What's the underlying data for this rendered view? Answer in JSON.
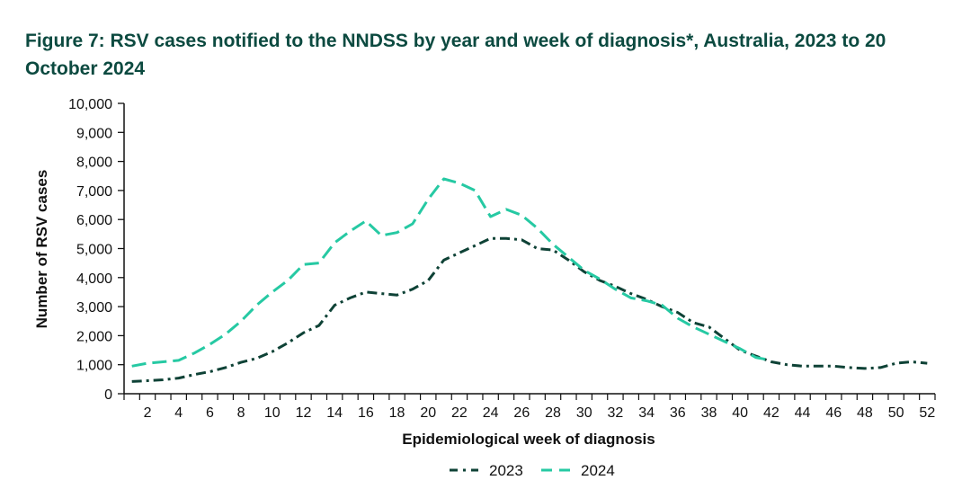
{
  "title": "Figure 7: RSV cases notified to the NNDSS by year and week of diagnosis*, Australia, 2023 to 20 October 2024",
  "chart_data": {
    "type": "line",
    "title": "Figure 7: RSV cases notified to the NNDSS by year and week of diagnosis*, Australia, 2023 to 20 October 2024",
    "xlabel": "Epidemiological week of diagnosis",
    "ylabel": "Number of RSV cases",
    "xlim": [
      1,
      52
    ],
    "ylim": [
      0,
      10000
    ],
    "x_ticks": [
      2,
      4,
      6,
      8,
      10,
      12,
      14,
      16,
      18,
      20,
      22,
      24,
      26,
      28,
      30,
      32,
      34,
      36,
      38,
      40,
      42,
      44,
      46,
      48,
      50,
      52
    ],
    "x_tick_labels": [
      "2",
      "4",
      "6",
      "8",
      "10",
      "12",
      "14",
      "16",
      "18",
      "20",
      "22",
      "24",
      "26",
      "28",
      "30",
      "32",
      "34",
      "36",
      "38",
      "40",
      "42",
      "44",
      "46",
      "48",
      "50",
      "52"
    ],
    "y_ticks": [
      0,
      1000,
      2000,
      3000,
      4000,
      5000,
      6000,
      7000,
      8000,
      9000,
      10000
    ],
    "y_tick_labels": [
      "0",
      "1,000",
      "2,000",
      "3,000",
      "4,000",
      "5,000",
      "6,000",
      "7,000",
      "8,000",
      "9,000",
      "10,000"
    ],
    "grid": false,
    "legend_position": "bottom-center",
    "series": [
      {
        "name": "2023",
        "color": "#0e4236",
        "dash": "dash-dot",
        "x": [
          1,
          2,
          3,
          4,
          5,
          6,
          7,
          8,
          9,
          10,
          11,
          12,
          13,
          14,
          15,
          16,
          17,
          18,
          19,
          20,
          21,
          22,
          23,
          24,
          25,
          26,
          27,
          28,
          29,
          30,
          31,
          32,
          33,
          34,
          35,
          36,
          37,
          38,
          39,
          40,
          41,
          42,
          43,
          44,
          45,
          46,
          47,
          48,
          49,
          50,
          51,
          52
        ],
        "values": [
          420,
          450,
          480,
          540,
          660,
          760,
          900,
          1080,
          1220,
          1450,
          1750,
          2100,
          2350,
          3050,
          3300,
          3500,
          3450,
          3400,
          3600,
          3900,
          4600,
          4850,
          5100,
          5350,
          5350,
          5300,
          5000,
          4950,
          4600,
          4200,
          3900,
          3700,
          3450,
          3250,
          3000,
          2800,
          2450,
          2300,
          1900,
          1500,
          1300,
          1100,
          1000,
          950,
          950,
          950,
          900,
          870,
          900,
          1050,
          1100,
          1050
        ]
      },
      {
        "name": "2024",
        "color": "#26c9a3",
        "dash": "dashed",
        "x": [
          1,
          2,
          3,
          4,
          5,
          6,
          7,
          8,
          9,
          10,
          11,
          12,
          13,
          14,
          15,
          16,
          17,
          18,
          19,
          20,
          21,
          22,
          23,
          24,
          25,
          26,
          27,
          28,
          29,
          30,
          31,
          32,
          33,
          34,
          35,
          36,
          37,
          38,
          39,
          40,
          41,
          42
        ],
        "values": [
          950,
          1050,
          1100,
          1150,
          1400,
          1700,
          2050,
          2500,
          3050,
          3500,
          3900,
          4450,
          4500,
          5200,
          5600,
          5950,
          5450,
          5550,
          5850,
          6700,
          7400,
          7250,
          7000,
          6100,
          6350,
          6150,
          5700,
          5150,
          4700,
          4250,
          3950,
          3600,
          3300,
          3200,
          3050,
          2600,
          2300,
          2050,
          1800,
          1550,
          1250,
          1150
        ]
      }
    ]
  }
}
